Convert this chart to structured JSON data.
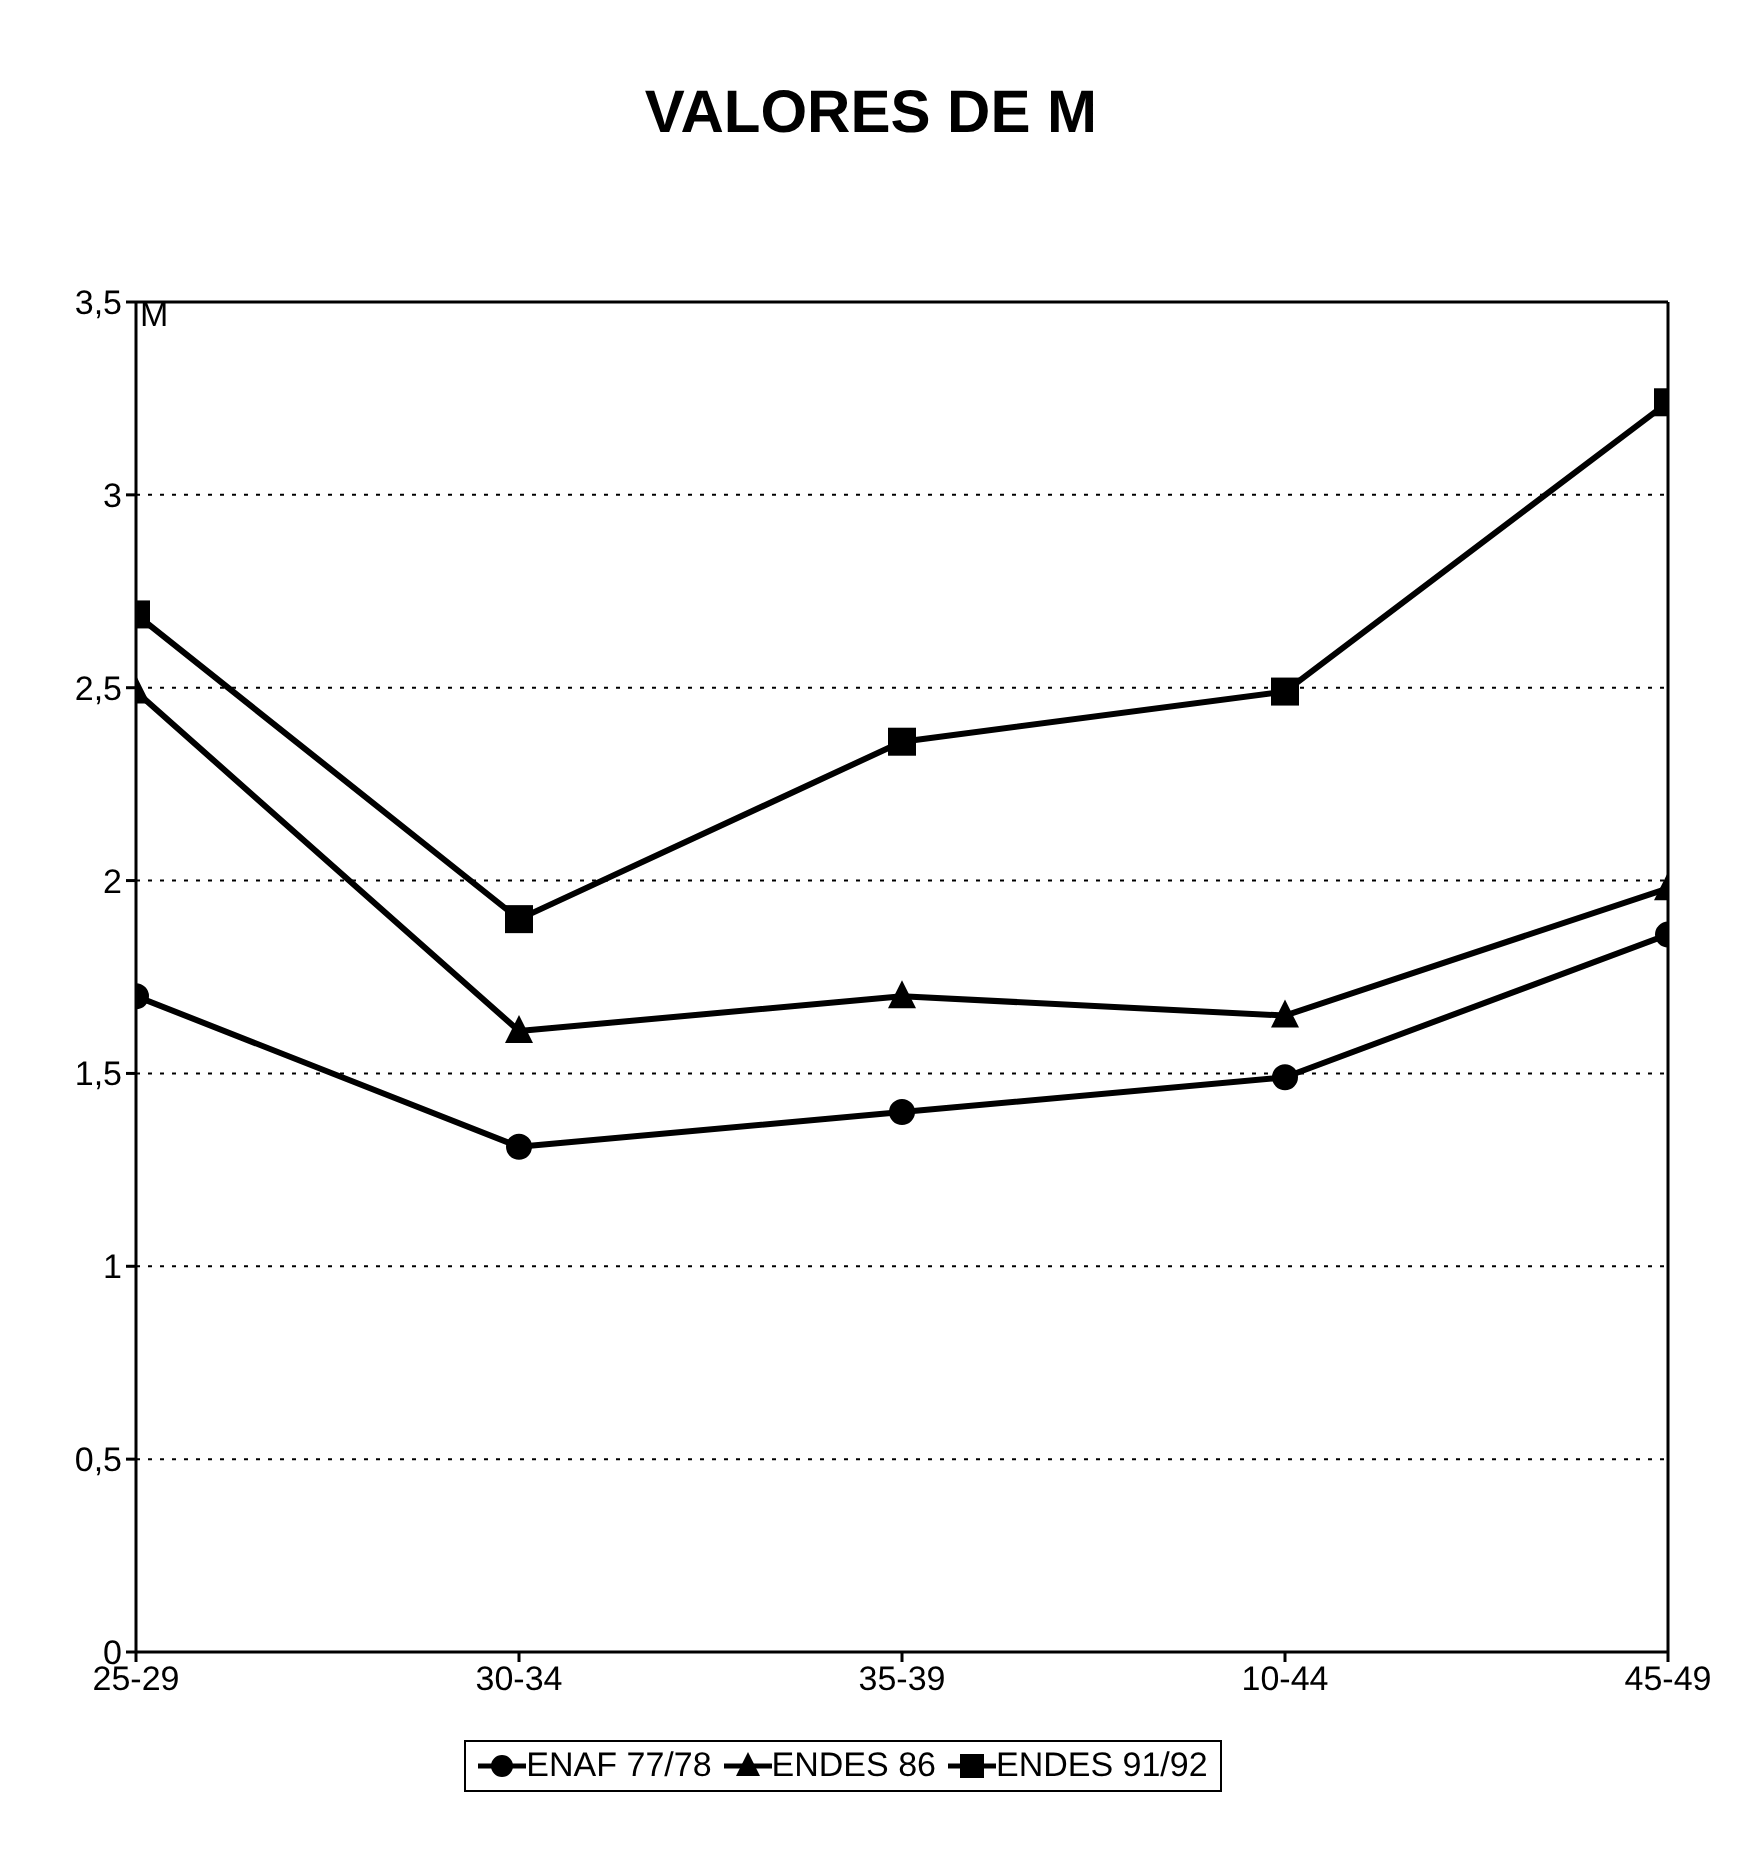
{
  "chart_data": {
    "type": "line",
    "title": "VALORES DE M",
    "ylabel": "M",
    "categories": [
      "25-29",
      "30-34",
      "35-39",
      "10-44",
      "45-49"
    ],
    "series": [
      {
        "name": "ENAF 77/78",
        "color": "#000000",
        "marker": "circle",
        "values": [
          1.7,
          1.31,
          1.4,
          1.49,
          1.86
        ]
      },
      {
        "name": "ENDES 86",
        "color": "#000000",
        "marker": "triangle",
        "values": [
          2.49,
          1.61,
          1.7,
          1.65,
          1.98
        ]
      },
      {
        "name": "ENDES 91/92",
        "color": "#000000",
        "marker": "square",
        "values": [
          2.69,
          1.9,
          2.36,
          2.49,
          3.24
        ]
      }
    ],
    "ylim": [
      0,
      3.5
    ],
    "yticks": [
      0,
      {
        "value": 0.5,
        "label": "0,5"
      },
      1,
      {
        "value": 1.5,
        "label": "1,5"
      },
      2,
      {
        "value": 2.5,
        "label": "2,5"
      },
      3,
      {
        "value": 3.5,
        "label": "3,5"
      }
    ],
    "grid": "y",
    "legend": "bottom",
    "line_style": "solid"
  }
}
